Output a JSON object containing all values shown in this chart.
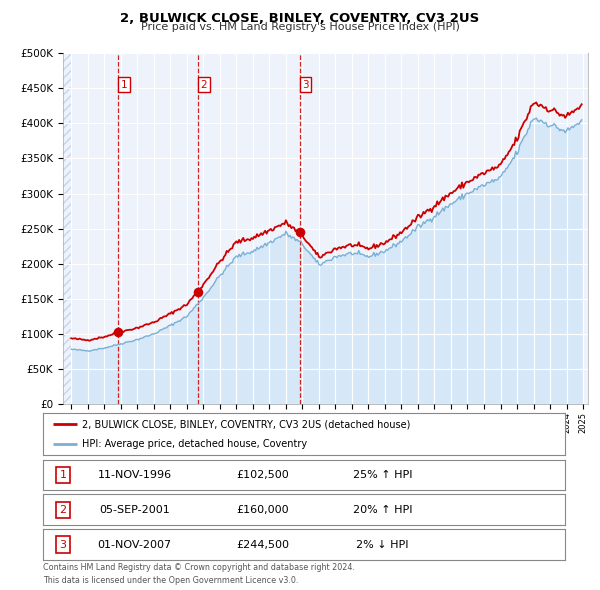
{
  "title": "2, BULWICK CLOSE, BINLEY, COVENTRY, CV3 2US",
  "subtitle": "Price paid vs. HM Land Registry's House Price Index (HPI)",
  "property_label": "2, BULWICK CLOSE, BINLEY, COVENTRY, CV3 2US (detached house)",
  "hpi_label": "HPI: Average price, detached house, Coventry",
  "property_color": "#cc0000",
  "hpi_color": "#7ab0d4",
  "hpi_fill_color": "#d6e8f7",
  "background_color": "#eef3fb",
  "hatch_color": "#c8d4e8",
  "sale_dates_numeric": [
    1996.8611,
    2001.6722,
    2007.8333
  ],
  "sale_prices": [
    102500,
    160000,
    244500
  ],
  "sale_labels": [
    "1",
    "2",
    "3"
  ],
  "table_rows": [
    [
      "1",
      "11-NOV-1996",
      "£102,500",
      "25% ↑ HPI"
    ],
    [
      "2",
      "05-SEP-2001",
      "£160,000",
      "20% ↑ HPI"
    ],
    [
      "3",
      "01-NOV-2007",
      "£244,500",
      "2% ↓ HPI"
    ]
  ],
  "footer_line1": "Contains HM Land Registry data © Crown copyright and database right 2024.",
  "footer_line2": "This data is licensed under the Open Government Licence v3.0.",
  "ylim": [
    0,
    500000
  ],
  "yticks": [
    0,
    50000,
    100000,
    150000,
    200000,
    250000,
    300000,
    350000,
    400000,
    450000,
    500000
  ],
  "ytick_labels": [
    "£0",
    "£50K",
    "£100K",
    "£150K",
    "£200K",
    "£250K",
    "£300K",
    "£350K",
    "£400K",
    "£450K",
    "£500K"
  ],
  "xlim_left": 1993.5,
  "xlim_right": 2025.3,
  "hatch_end": 1994.0,
  "data_start": 1994.0,
  "data_end": 2025.0
}
